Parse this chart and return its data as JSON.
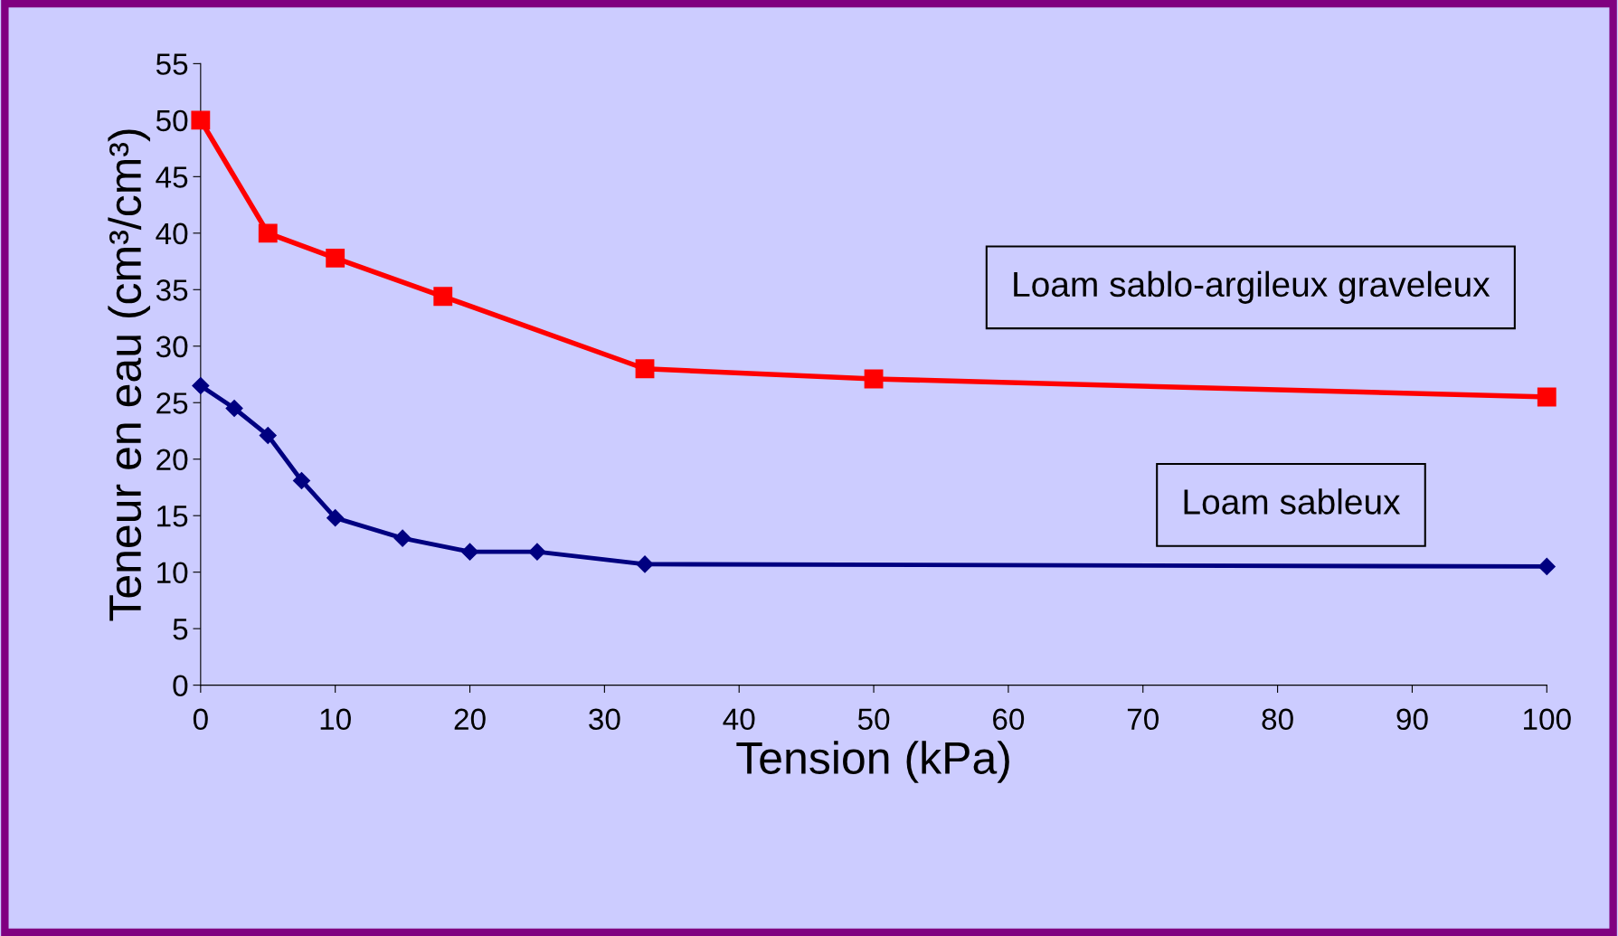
{
  "chart_data": {
    "type": "line",
    "xlabel": "Tension (kPa)",
    "ylabel": "Teneur en eau (cm³/cm³)",
    "xlim": [
      0,
      100
    ],
    "xticks": [
      0,
      10,
      20,
      30,
      40,
      50,
      60,
      70,
      80,
      90,
      100
    ],
    "ylim": [
      0,
      55
    ],
    "yticks": [
      0,
      5,
      10,
      15,
      20,
      25,
      30,
      35,
      40,
      45,
      50,
      55
    ],
    "grid": false,
    "legend": false,
    "series": [
      {
        "name": "Loam sablo-argileux graveleux",
        "color": "#ff0000",
        "marker": "square",
        "x": [
          0,
          5,
          10,
          18,
          33,
          50,
          100
        ],
        "values": [
          50,
          40,
          37.8,
          34.4,
          28,
          27.1,
          25.5
        ]
      },
      {
        "name": "Loam sableux",
        "color": "#000080",
        "marker": "diamond",
        "x": [
          0,
          2.5,
          5,
          7.5,
          10,
          15,
          20,
          25,
          33,
          100
        ],
        "values": [
          26.5,
          24.5,
          22.1,
          18.1,
          14.8,
          13,
          11.8,
          11.8,
          10.7,
          10.5
        ]
      }
    ]
  }
}
